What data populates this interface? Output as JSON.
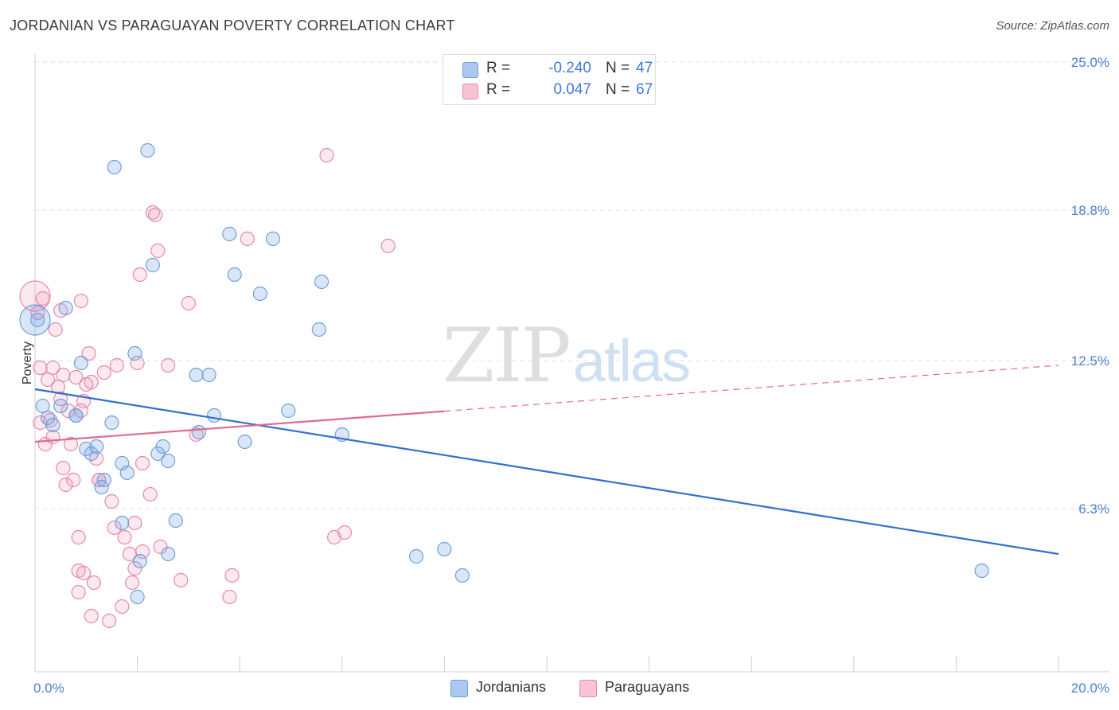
{
  "title": "JORDANIAN VS PARAGUAYAN POVERTY CORRELATION CHART",
  "source": "Source: ZipAtlas.com",
  "watermark": {
    "zip": "ZIP",
    "atlas": "atlas"
  },
  "stats": [
    {
      "r_label": "R =",
      "r_value": "-0.240",
      "n_label": "N =",
      "n_value": "47",
      "color": "#aac8f0",
      "border": "#6f9fdc"
    },
    {
      "r_label": "R =",
      "r_value": "0.047",
      "n_label": "N =",
      "n_value": "67",
      "color": "#f8c4d4",
      "border": "#e58aa8"
    }
  ],
  "legend": [
    {
      "label": "Jordanians",
      "color": "#aac8f0",
      "border": "#6f9fdc"
    },
    {
      "label": "Paraguayans",
      "color": "#f8c4d4",
      "border": "#e58aa8"
    }
  ],
  "colors": {
    "jordanian_fill": "rgba(120,165,230,0.28)",
    "jordanian_stroke": "#6f9fdc",
    "jordanian_line": "#2f6fd1",
    "paraguayan_fill": "rgba(240,150,180,0.22)",
    "paraguayan_stroke": "#e58aa8",
    "paraguayan_line": "#e06a95",
    "grid": "#e2e2e2",
    "tick_label": "#4a7fd0"
  },
  "chart_data": {
    "type": "scatter",
    "title": "JORDANIAN VS PARAGUAYAN POVERTY CORRELATION CHART",
    "xlabel": "",
    "ylabel": "Poverty",
    "xlim": [
      0,
      20
    ],
    "ylim": [
      0,
      25
    ],
    "x_tick_labels": [
      {
        "value": 0,
        "label": "0.0%"
      },
      {
        "value": 20,
        "label": "20.0%"
      }
    ],
    "y_tick_labels": [
      {
        "value": 6.3,
        "label": "6.3%"
      },
      {
        "value": 12.5,
        "label": "12.5%"
      },
      {
        "value": 18.8,
        "label": "18.8%"
      },
      {
        "value": 25.0,
        "label": "25.0%"
      }
    ],
    "grid": true,
    "legend_position": "bottom-center",
    "series": [
      {
        "name": "Jordanians",
        "trend": {
          "x0": 0,
          "y0": 11.3,
          "x1": 20,
          "y1": 4.4,
          "solid_to": 20
        },
        "points": [
          {
            "x": 0.0,
            "y": 14.2,
            "size": "large"
          },
          {
            "x": 0.15,
            "y": 10.6
          },
          {
            "x": 0.35,
            "y": 9.8
          },
          {
            "x": 0.5,
            "y": 10.6
          },
          {
            "x": 0.8,
            "y": 10.2
          },
          {
            "x": 0.6,
            "y": 14.7
          },
          {
            "x": 0.9,
            "y": 12.4
          },
          {
            "x": 1.55,
            "y": 20.6
          },
          {
            "x": 2.2,
            "y": 21.3
          },
          {
            "x": 1.0,
            "y": 8.8
          },
          {
            "x": 1.1,
            "y": 8.6
          },
          {
            "x": 1.2,
            "y": 8.9
          },
          {
            "x": 1.3,
            "y": 7.2
          },
          {
            "x": 1.35,
            "y": 7.5
          },
          {
            "x": 1.5,
            "y": 9.9
          },
          {
            "x": 1.7,
            "y": 8.2
          },
          {
            "x": 1.8,
            "y": 7.8
          },
          {
            "x": 1.7,
            "y": 5.7
          },
          {
            "x": 1.95,
            "y": 12.8
          },
          {
            "x": 2.05,
            "y": 4.1
          },
          {
            "x": 2.0,
            "y": 2.6
          },
          {
            "x": 2.3,
            "y": 16.5
          },
          {
            "x": 2.4,
            "y": 8.6
          },
          {
            "x": 2.5,
            "y": 8.9
          },
          {
            "x": 2.6,
            "y": 8.3
          },
          {
            "x": 2.6,
            "y": 4.4
          },
          {
            "x": 2.75,
            "y": 5.8
          },
          {
            "x": 3.15,
            "y": 11.9
          },
          {
            "x": 3.4,
            "y": 11.9
          },
          {
            "x": 3.2,
            "y": 9.5
          },
          {
            "x": 3.5,
            "y": 10.2
          },
          {
            "x": 3.8,
            "y": 17.8
          },
          {
            "x": 3.9,
            "y": 16.1
          },
          {
            "x": 4.1,
            "y": 9.1
          },
          {
            "x": 4.4,
            "y": 15.3
          },
          {
            "x": 4.65,
            "y": 17.6
          },
          {
            "x": 4.95,
            "y": 10.4
          },
          {
            "x": 5.6,
            "y": 15.8
          },
          {
            "x": 5.55,
            "y": 13.8
          },
          {
            "x": 6.0,
            "y": 9.4
          },
          {
            "x": 7.45,
            "y": 4.3
          },
          {
            "x": 8.0,
            "y": 4.6
          },
          {
            "x": 8.35,
            "y": 3.5
          },
          {
            "x": 18.5,
            "y": 3.7
          },
          {
            "x": 0.8,
            "y": 10.2
          },
          {
            "x": 0.25,
            "y": 10.1
          },
          {
            "x": 0.05,
            "y": 14.2
          }
        ]
      },
      {
        "name": "Paraguayans",
        "trend": {
          "x0": 0,
          "y0": 9.1,
          "x1": 20,
          "y1": 12.3,
          "solid_to": 8.0
        },
        "points": [
          {
            "x": 0.0,
            "y": 15.2,
            "size": "large"
          },
          {
            "x": 0.1,
            "y": 12.2
          },
          {
            "x": 0.1,
            "y": 9.9
          },
          {
            "x": 0.2,
            "y": 9.0
          },
          {
            "x": 0.25,
            "y": 11.7
          },
          {
            "x": 0.35,
            "y": 12.2
          },
          {
            "x": 0.35,
            "y": 9.3
          },
          {
            "x": 0.4,
            "y": 13.8
          },
          {
            "x": 0.45,
            "y": 11.4
          },
          {
            "x": 0.5,
            "y": 14.6
          },
          {
            "x": 0.55,
            "y": 11.9
          },
          {
            "x": 0.5,
            "y": 10.9
          },
          {
            "x": 0.55,
            "y": 8.0
          },
          {
            "x": 0.6,
            "y": 7.3
          },
          {
            "x": 0.65,
            "y": 10.4
          },
          {
            "x": 0.7,
            "y": 9.0
          },
          {
            "x": 0.75,
            "y": 7.5
          },
          {
            "x": 0.8,
            "y": 11.8
          },
          {
            "x": 0.85,
            "y": 2.8
          },
          {
            "x": 0.85,
            "y": 3.7
          },
          {
            "x": 0.85,
            "y": 5.1
          },
          {
            "x": 0.9,
            "y": 10.4
          },
          {
            "x": 0.95,
            "y": 3.6
          },
          {
            "x": 0.9,
            "y": 15.0
          },
          {
            "x": 0.95,
            "y": 10.8
          },
          {
            "x": 1.0,
            "y": 11.5
          },
          {
            "x": 1.05,
            "y": 12.8
          },
          {
            "x": 1.1,
            "y": 11.6
          },
          {
            "x": 1.1,
            "y": 1.8
          },
          {
            "x": 1.15,
            "y": 3.2
          },
          {
            "x": 1.2,
            "y": 8.4
          },
          {
            "x": 1.25,
            "y": 7.5
          },
          {
            "x": 1.35,
            "y": 12.0
          },
          {
            "x": 1.45,
            "y": 1.6
          },
          {
            "x": 1.5,
            "y": 6.6
          },
          {
            "x": 1.55,
            "y": 5.5
          },
          {
            "x": 1.6,
            "y": 12.3
          },
          {
            "x": 1.7,
            "y": 2.2
          },
          {
            "x": 1.75,
            "y": 5.1
          },
          {
            "x": 1.85,
            "y": 4.4
          },
          {
            "x": 1.9,
            "y": 3.2
          },
          {
            "x": 1.95,
            "y": 3.8
          },
          {
            "x": 1.95,
            "y": 5.7
          },
          {
            "x": 2.0,
            "y": 12.4
          },
          {
            "x": 2.05,
            "y": 16.1
          },
          {
            "x": 2.1,
            "y": 8.2
          },
          {
            "x": 2.1,
            "y": 4.5
          },
          {
            "x": 2.25,
            "y": 6.9
          },
          {
            "x": 2.3,
            "y": 18.7
          },
          {
            "x": 2.35,
            "y": 18.6
          },
          {
            "x": 2.4,
            "y": 17.1
          },
          {
            "x": 2.45,
            "y": 4.7
          },
          {
            "x": 2.6,
            "y": 12.3
          },
          {
            "x": 2.85,
            "y": 3.3
          },
          {
            "x": 3.0,
            "y": 14.9
          },
          {
            "x": 3.15,
            "y": 9.4
          },
          {
            "x": 3.8,
            "y": 2.6
          },
          {
            "x": 3.85,
            "y": 3.5
          },
          {
            "x": 4.15,
            "y": 17.6
          },
          {
            "x": 5.7,
            "y": 21.1
          },
          {
            "x": 5.85,
            "y": 5.1
          },
          {
            "x": 6.05,
            "y": 5.3
          },
          {
            "x": 6.9,
            "y": 17.3
          },
          {
            "x": 0.3,
            "y": 10.0
          },
          {
            "x": 1.25,
            "y": 7.5
          },
          {
            "x": 0.15,
            "y": 15.1
          },
          {
            "x": 0.05,
            "y": 14.5
          }
        ]
      }
    ]
  }
}
